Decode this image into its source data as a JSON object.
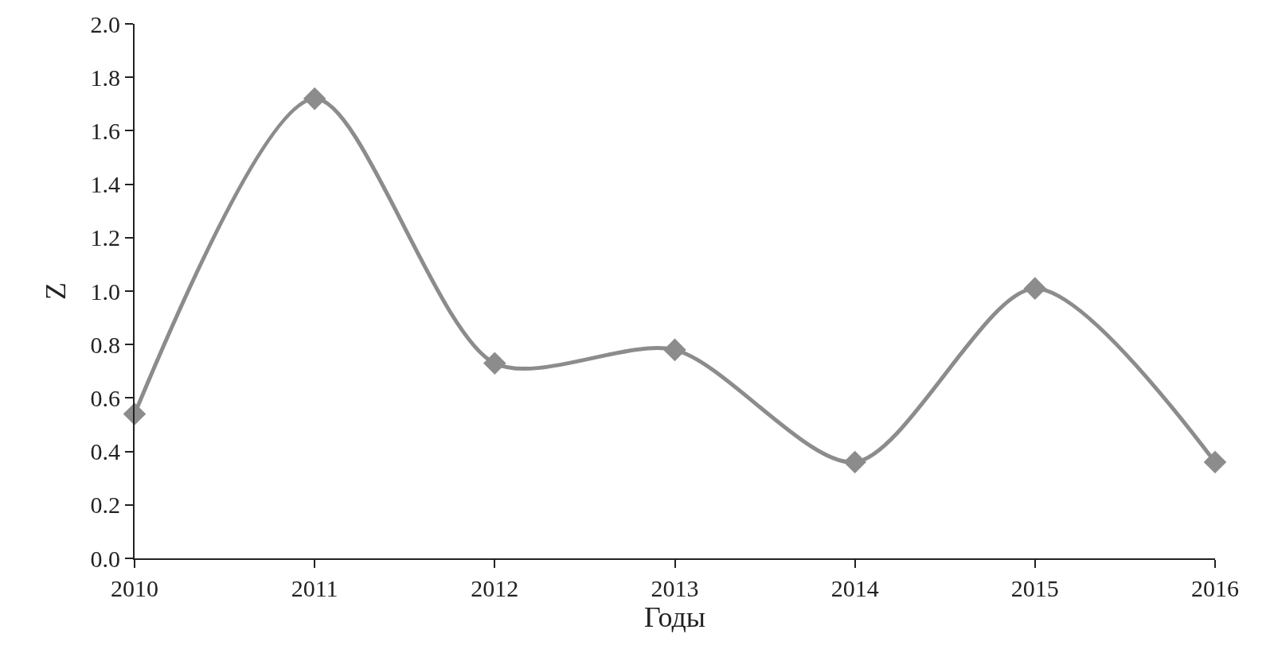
{
  "chart_data": {
    "type": "line",
    "xlabel": "Годы",
    "ylabel": "Z",
    "x": [
      2010,
      2011,
      2012,
      2013,
      2014,
      2015,
      2016
    ],
    "series": [
      {
        "color": "#8c8c8c",
        "values": [
          0.54,
          1.72,
          0.73,
          0.78,
          0.36,
          1.01,
          0.36
        ]
      }
    ],
    "xlim": [
      2010,
      2016
    ],
    "xticks": [
      2010,
      2011,
      2012,
      2013,
      2014,
      2015,
      2016
    ],
    "ylim": [
      0,
      2
    ],
    "yticks": [
      {
        "value": 0,
        "label": "0.0"
      },
      {
        "value": 0.2,
        "label": "0.2"
      },
      {
        "value": 0.4,
        "label": "0.4"
      },
      {
        "value": 0.6,
        "label": "0.6"
      },
      {
        "value": 0.8,
        "label": "0.8"
      },
      {
        "value": 1,
        "label": "1.0"
      },
      {
        "value": 1.2,
        "label": "1.2"
      },
      {
        "value": 1.4,
        "label": "1.4"
      },
      {
        "value": 1.6,
        "label": "1.6"
      },
      {
        "value": 1.8,
        "label": "1.8"
      },
      {
        "value": 2,
        "label": "2.0"
      }
    ],
    "grid": false,
    "marker": "diamond",
    "line_style": "solid"
  }
}
